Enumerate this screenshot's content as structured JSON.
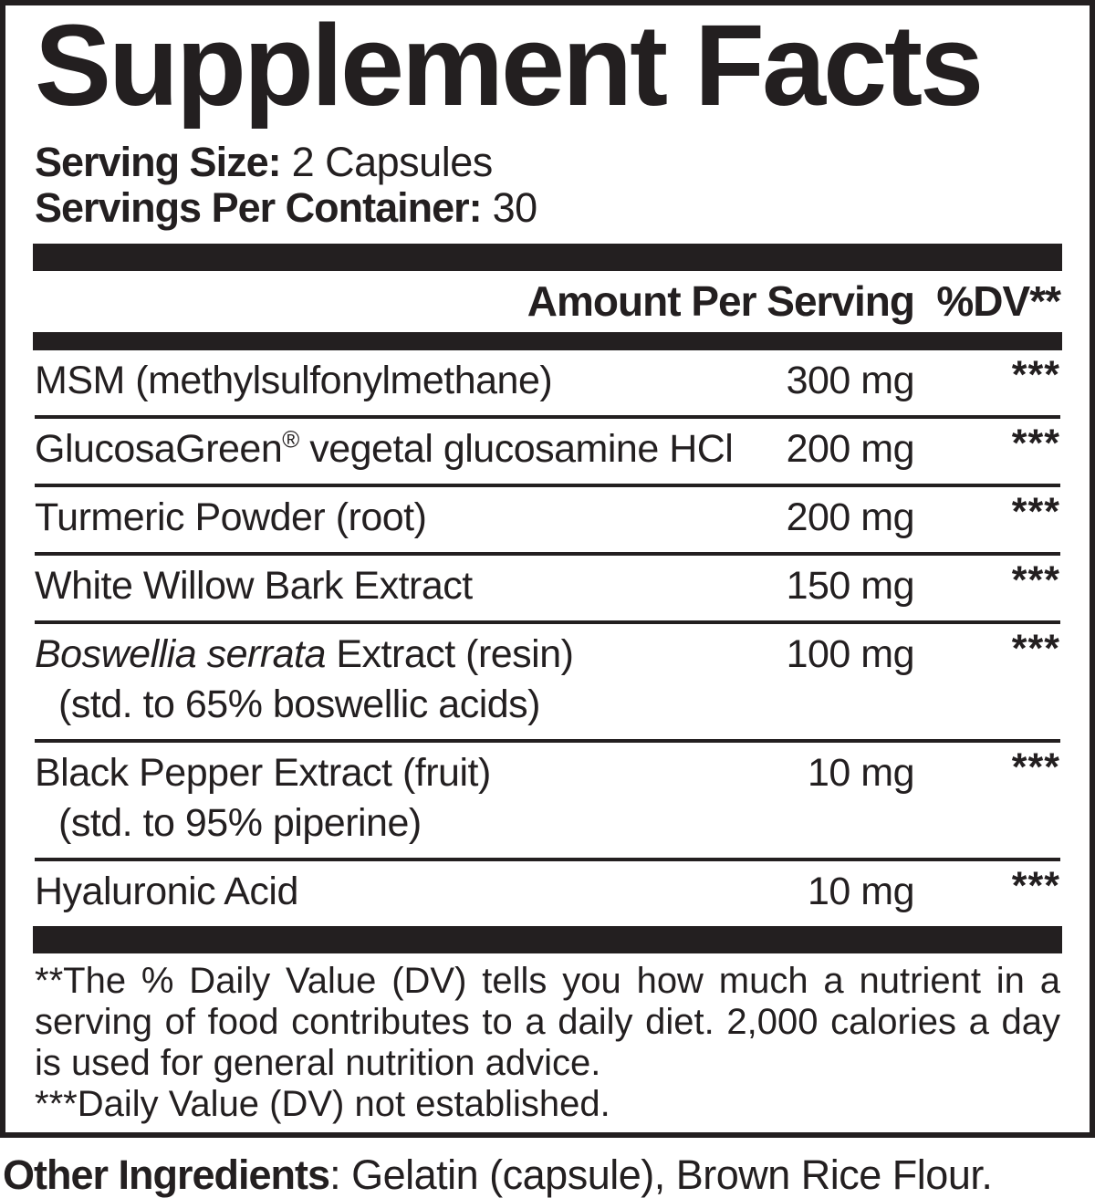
{
  "colors": {
    "ink": "#231f20",
    "background": "#ffffff"
  },
  "title": "Supplement Facts",
  "serving": {
    "size_label": "Serving Size:",
    "size_value": " 2 Capsules",
    "per_container_label": "Servings Per Container:",
    "per_container_value": " 30"
  },
  "table": {
    "amount_header": "Amount Per Serving",
    "dv_header": "%DV**",
    "rows": [
      {
        "name": "MSM (methylsulfonylmethane)",
        "amount": "300 mg",
        "dv": "***"
      },
      {
        "name": "GlucosaGreen",
        "trademark": "®",
        "name_rest": " vegetal glucosamine HCl",
        "amount": "200 mg",
        "dv": "***"
      },
      {
        "name": "Turmeric Powder (root)",
        "amount": "200 mg",
        "dv": "***"
      },
      {
        "name": "White Willow Bark Extract",
        "amount": "150 mg",
        "dv": "***"
      },
      {
        "name_italic": "Boswellia serrata",
        "name_rest": " Extract (resin)",
        "detail": "(std. to 65% boswellic acids)",
        "amount": "100 mg",
        "dv": "***"
      },
      {
        "name": "Black Pepper Extract (fruit)",
        "detail": "(std. to 95% piperine)",
        "amount": "10 mg",
        "dv": "***"
      },
      {
        "name": "Hyaluronic Acid",
        "amount": "10 mg",
        "dv": "***"
      }
    ]
  },
  "footnotes": {
    "dv_note": "**The % Daily Value (DV) tells you how much a nutrient in a serving of food contributes to a daily diet. 2,000 calories a day is used for general nutrition advice.",
    "not_established_note": "***Daily Value (DV) not established."
  },
  "other_ingredients": {
    "label": "Other Ingredients",
    "value": ": Gelatin (capsule), Brown Rice Flour."
  }
}
